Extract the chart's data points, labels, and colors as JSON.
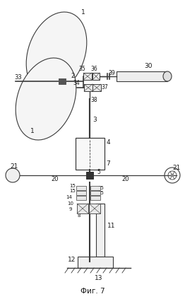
{
  "title": "Фиг. 7",
  "bg_color": "#ffffff",
  "line_color": "#3a3a3a",
  "label_color": "#1a1a1a",
  "figsize": [
    2.62,
    4.23
  ],
  "dpi": 100
}
